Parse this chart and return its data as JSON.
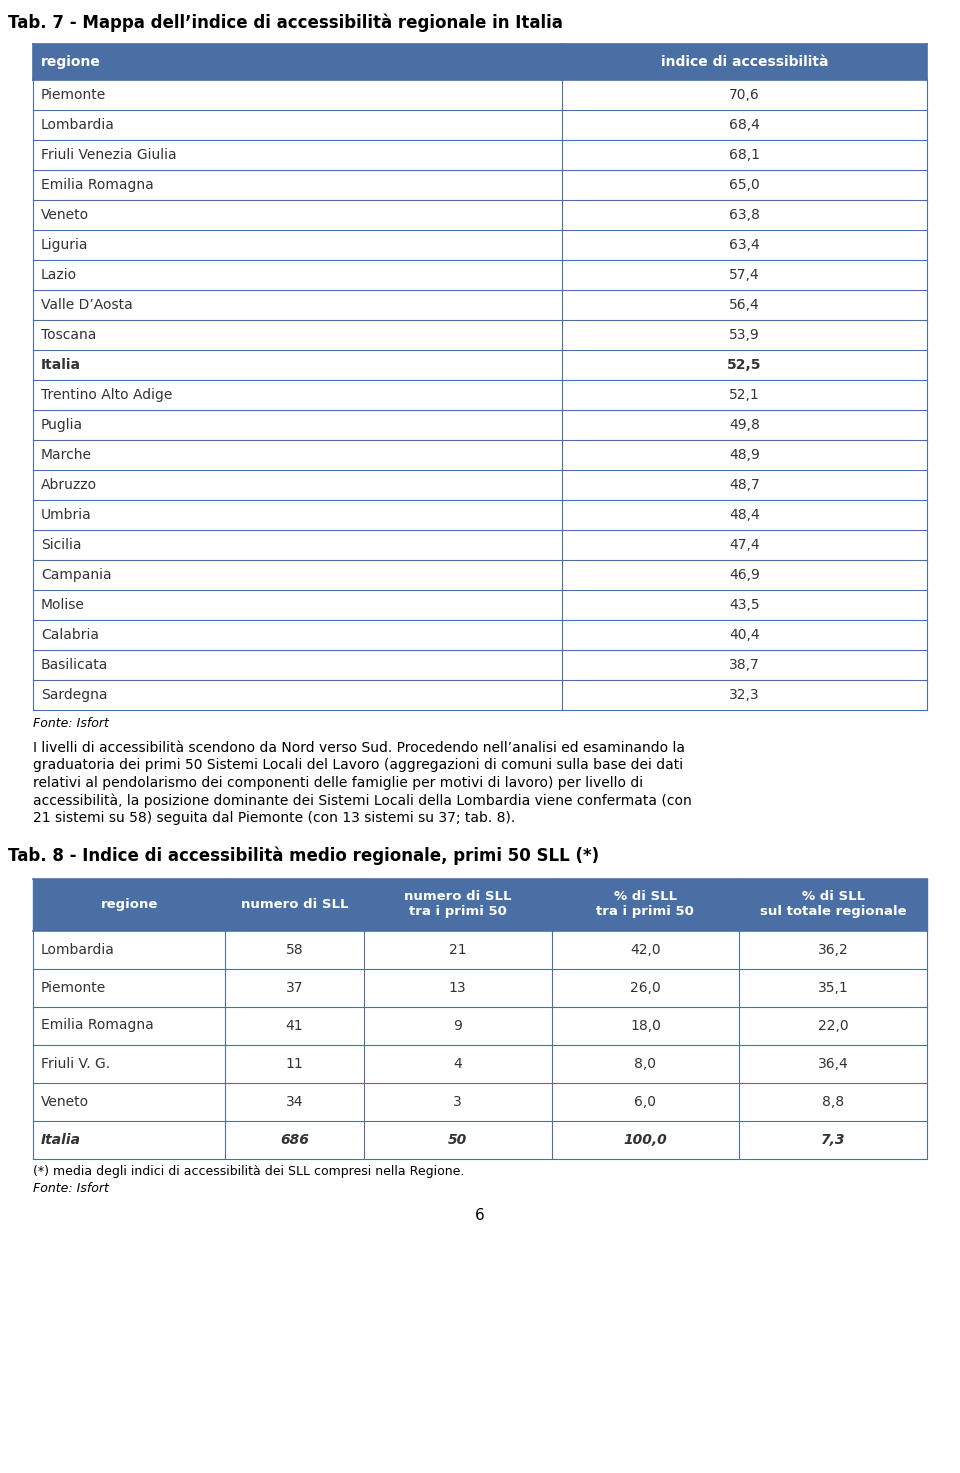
{
  "title7": "Tab. 7 - Mappa dell’indice di accessibilità regionale in Italia",
  "title8": "Tab. 8 - Indice di accessibilità medio regionale, primi 50 SLL (*)",
  "header_bg": "#4a6fa5",
  "header_color": "#ffffff",
  "row_bg_white": "#ffffff",
  "border_color": "#4a6fa5",
  "text_color": "#333333",
  "table7_headers": [
    "regione",
    "indice di accessibilità"
  ],
  "table7_rows": [
    [
      "Piemonte",
      "70,6"
    ],
    [
      "Lombardia",
      "68,4"
    ],
    [
      "Friuli Venezia Giulia",
      "68,1"
    ],
    [
      "Emilia Romagna",
      "65,0"
    ],
    [
      "Veneto",
      "63,8"
    ],
    [
      "Liguria",
      "63,4"
    ],
    [
      "Lazio",
      "57,4"
    ],
    [
      "Valle D’Aosta",
      "56,4"
    ],
    [
      "Toscana",
      "53,9"
    ],
    [
      "Italia",
      "52,5"
    ],
    [
      "Trentino Alto Adige",
      "52,1"
    ],
    [
      "Puglia",
      "49,8"
    ],
    [
      "Marche",
      "48,9"
    ],
    [
      "Abruzzo",
      "48,7"
    ],
    [
      "Umbria",
      "48,4"
    ],
    [
      "Sicilia",
      "47,4"
    ],
    [
      "Campania",
      "46,9"
    ],
    [
      "Molise",
      "43,5"
    ],
    [
      "Calabria",
      "40,4"
    ],
    [
      "Basilicata",
      "38,7"
    ],
    [
      "Sardegna",
      "32,3"
    ]
  ],
  "italia_row_index7": 9,
  "fonte7": "Fonte: Isfort",
  "paragraph_lines": [
    "I livelli di accessibilità scendono da Nord verso Sud. Procedendo nell’analisi ed esaminando la",
    "graduatoria dei primi 50 Sistemi Locali del Lavoro (aggregazioni di comuni sulla base dei dati",
    "relativi al pendolarismo dei componenti delle famiglie per motivi di lavoro) per livello di",
    "accessibilità, la posizione dominante dei Sistemi Locali della Lombardia viene confermata (con",
    "21 sistemi su 58) seguita dal Piemonte (con 13 sistemi su 37; tab. 8)."
  ],
  "table8_headers": [
    "regione",
    "numero di SLL",
    "numero di SLL\ntra i primi 50",
    "% di SLL\ntra i primi 50",
    "% di SLL\nsul totale regionale"
  ],
  "table8_rows": [
    [
      "Lombardia",
      "58",
      "21",
      "42,0",
      "36,2"
    ],
    [
      "Piemonte",
      "37",
      "13",
      "26,0",
      "35,1"
    ],
    [
      "Emilia Romagna",
      "41",
      "9",
      "18,0",
      "22,0"
    ],
    [
      "Friuli V. G.",
      "11",
      "4",
      "8,0",
      "36,4"
    ],
    [
      "Veneto",
      "34",
      "3",
      "6,0",
      "8,8"
    ],
    [
      "Italia",
      "686",
      "50",
      "100,0",
      "7,3"
    ]
  ],
  "italia_row_index8": 5,
  "fonte8_line1": "(*) media degli indici di accessibilità dei SLL compresi nella Regione.",
  "fonte8_line2": "Fonte: Isfort",
  "page_number": "6"
}
